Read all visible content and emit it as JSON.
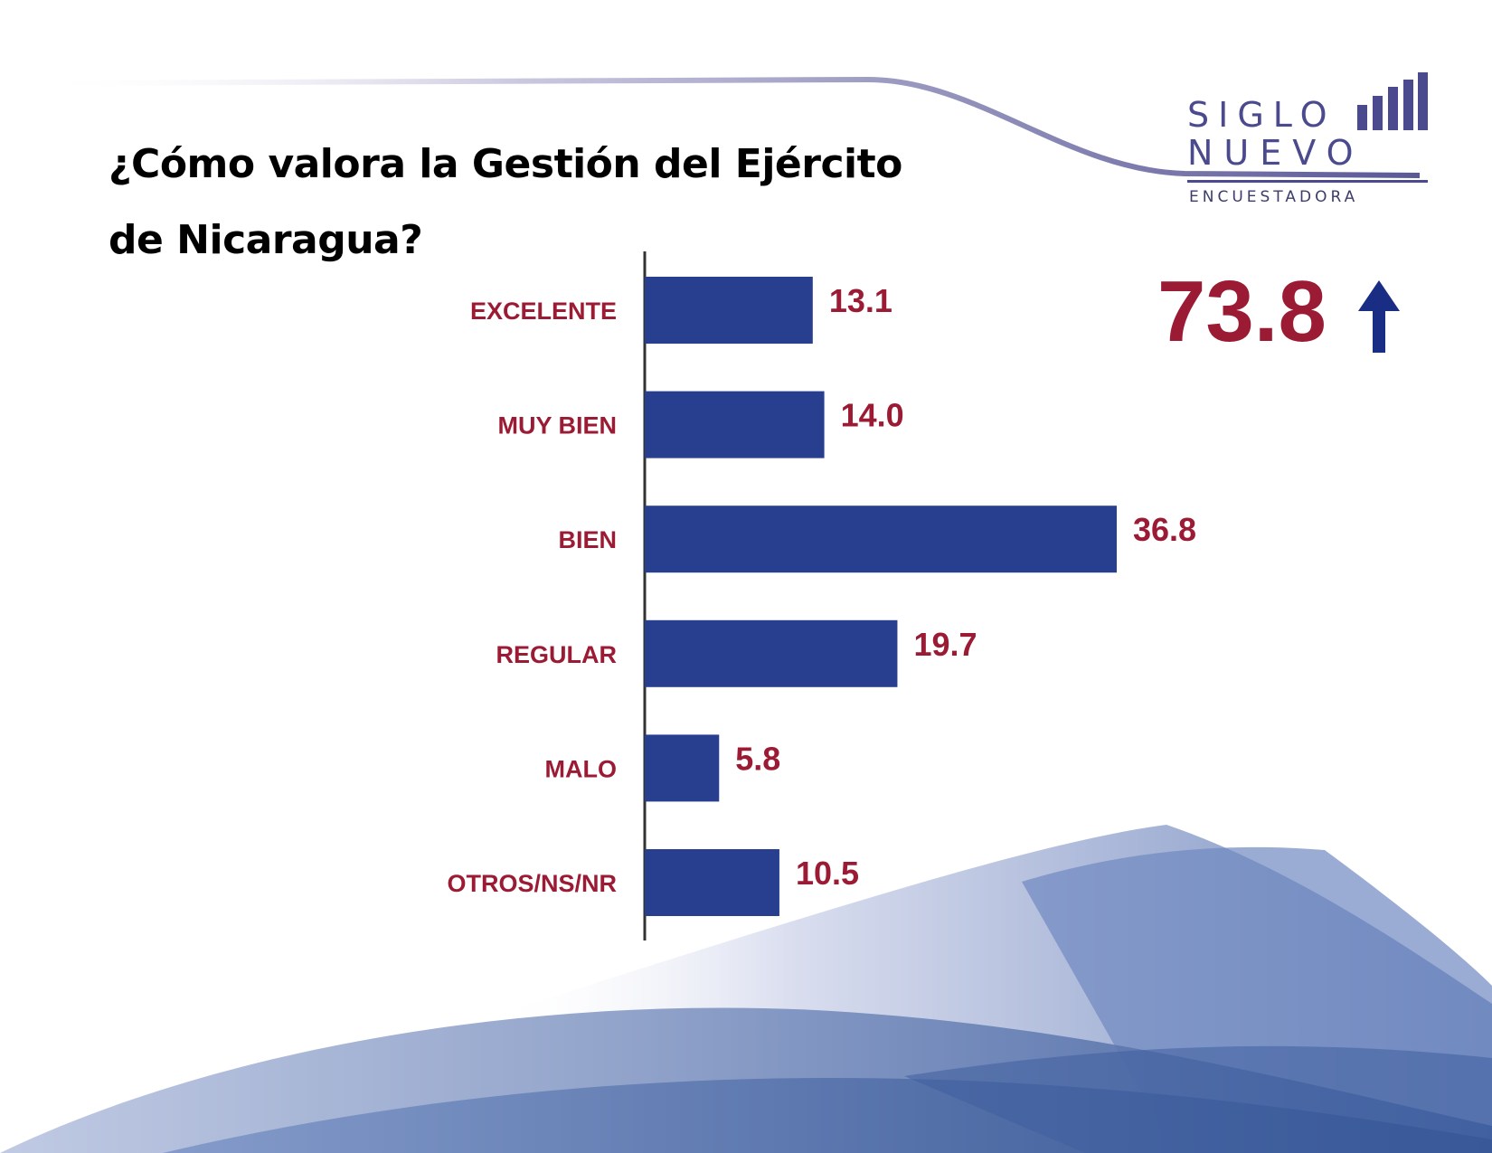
{
  "title": {
    "line1": "¿Cómo valora la Gestión del Ejército",
    "line2": "de Nicaragua?"
  },
  "logo": {
    "line1": "SIGLO",
    "line2": "NUEVO",
    "tagline": "ENCUESTADORA"
  },
  "summary": {
    "value": "73.8",
    "arrow_icon": "up-arrow-icon"
  },
  "colors": {
    "bar": "#283f8f",
    "label": "#9b1b34",
    "accent": "#4b4a8e",
    "arrow": "#1a2d84"
  },
  "chart_data": {
    "type": "bar",
    "orientation": "horizontal",
    "title": "¿Cómo valora la Gestión del Ejército de Nicaragua?",
    "categories": [
      "EXCELENTE",
      "MUY BIEN",
      "BIEN",
      "REGULAR",
      "MALO",
      "OTROS/NS/NR"
    ],
    "values": [
      13.1,
      14.0,
      36.8,
      19.7,
      5.8,
      10.5
    ],
    "value_labels": [
      "13.1",
      "14.0",
      "36.8",
      "19.7",
      "5.8",
      "10.5"
    ],
    "xlabel": "",
    "ylabel": "",
    "xlim": [
      0,
      36.8
    ],
    "grid": false,
    "legend": "none"
  }
}
